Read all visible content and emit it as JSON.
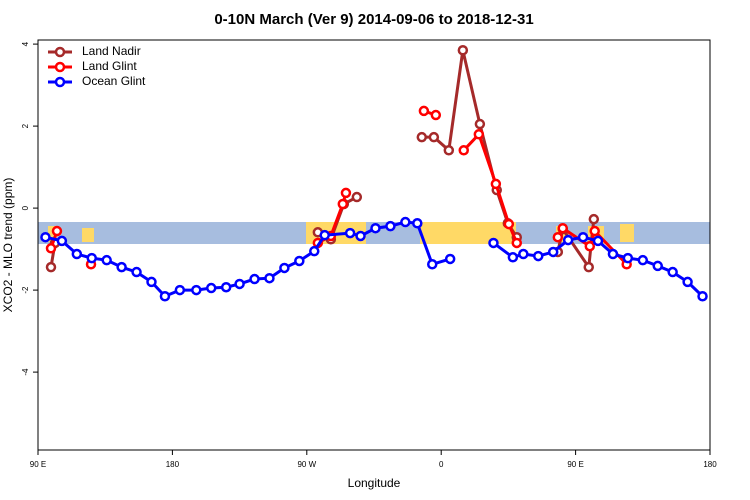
{
  "chart_data": {
    "type": "line",
    "title": "0-10N March (Ver 9)   2014-09-06 to 2018-12-31",
    "x_label": "Longitude",
    "y_label": "XCO2 - MLO trend (ppm)",
    "xlim": [
      90,
      540
    ],
    "ylim": [
      -5.9,
      4.1
    ],
    "xticks": [
      {
        "value": 90,
        "label": "90 E"
      },
      180,
      {
        "value": 270,
        "label": "90 W"
      },
      {
        "value": 360,
        "label": "0"
      },
      {
        "value": 450,
        "label": "90 E"
      },
      {
        "value": 540,
        "label": "180"
      }
    ],
    "yticks": [
      4,
      2,
      0,
      -2,
      -4
    ],
    "legend": "top-left",
    "series": [
      {
        "name": "Land Nadir",
        "color": "#a52a2a",
        "x": [
          98.7,
          101.4,
          null,
          277.4,
          286.1,
          294.8,
          303.5,
          null,
          347.0,
          355.1,
          365.1,
          374.5,
          385.9,
          397.2,
          404.6,
          410.6,
          null,
          438.1,
          441.4,
          458.8,
          462.2
        ],
        "values": [
          -1.44,
          -0.85,
          null,
          -0.59,
          -0.76,
          0.1,
          0.27,
          null,
          1.73,
          1.73,
          1.41,
          3.85,
          2.05,
          0.44,
          -0.37,
          -0.71,
          null,
          -1.07,
          -0.51,
          -1.44,
          -0.27
        ]
      },
      {
        "name": "Land Glint",
        "color": "#ff0000",
        "x": [
          98.7,
          102.7,
          null,
          125.5,
          null,
          277.4,
          286.1,
          294.1,
          296.2,
          null,
          348.4,
          356.4,
          null,
          375.1,
          385.2,
          396.6,
          405.3,
          410.6,
          null,
          438.1,
          441.4,
          459.5,
          462.8,
          484.2
        ],
        "values": [
          -0.98,
          -0.56,
          null,
          -1.37,
          null,
          -0.85,
          -0.68,
          0.1,
          0.37,
          null,
          2.37,
          2.27,
          null,
          1.41,
          1.8,
          0.59,
          -0.39,
          -0.85,
          null,
          -0.71,
          -0.49,
          -0.93,
          -0.56,
          -1.37
        ]
      },
      {
        "name": "Ocean Glint",
        "color": "#0000ff",
        "x": [
          95,
          106,
          116,
          126,
          136,
          146,
          156,
          166,
          175,
          185,
          196,
          206,
          216,
          225,
          235,
          245,
          255,
          265,
          275,
          282,
          299,
          306,
          316,
          326,
          336,
          344,
          354,
          366,
          null,
          395,
          408,
          415,
          425,
          435,
          445,
          455,
          465,
          475,
          485,
          495,
          505,
          515,
          525,
          535
        ],
        "values": [
          -0.71,
          -0.8,
          -1.12,
          -1.22,
          -1.27,
          -1.44,
          -1.56,
          -1.8,
          -2.15,
          -2.0,
          -2.0,
          -1.95,
          -1.93,
          -1.85,
          -1.73,
          -1.71,
          -1.46,
          -1.29,
          -1.05,
          -0.66,
          -0.61,
          -0.68,
          -0.49,
          -0.44,
          -0.34,
          -0.37,
          -1.37,
          -1.24,
          null,
          -0.85,
          -1.2,
          -1.12,
          -1.17,
          -1.07,
          -0.78,
          -0.71,
          -0.8,
          -1.12,
          -1.22,
          -1.27,
          -1.41,
          -1.56,
          -1.8,
          -2.15
        ]
      }
    ]
  }
}
